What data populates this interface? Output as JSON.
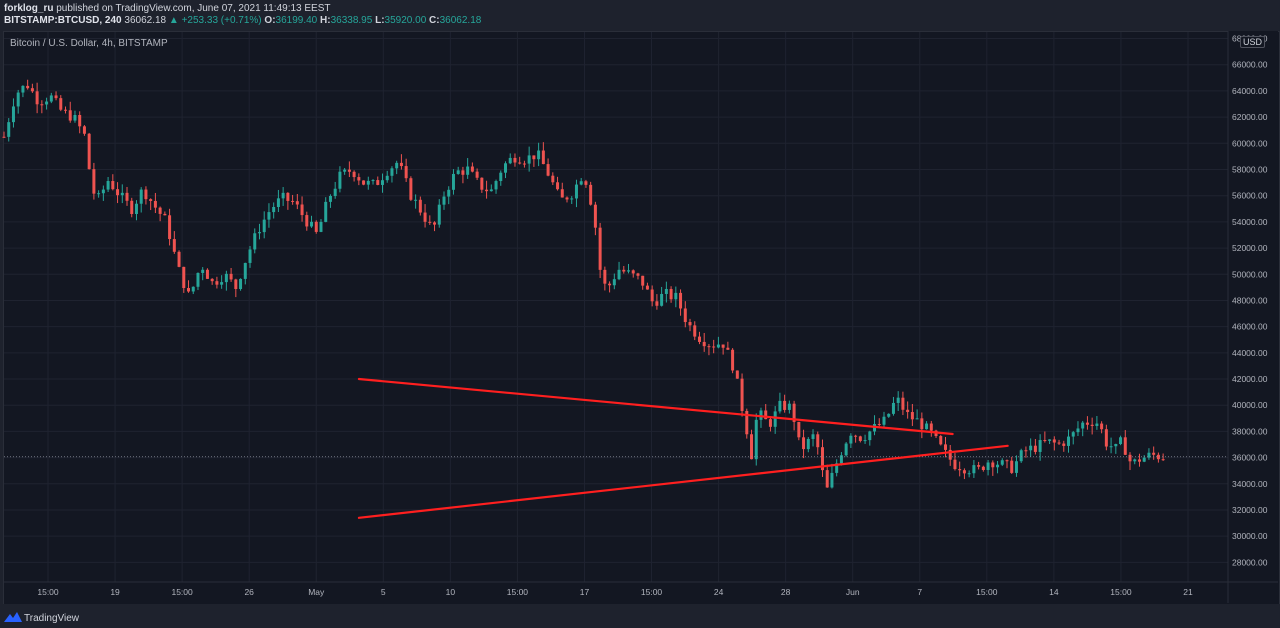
{
  "header": {
    "publisher": "forklog_ru",
    "published_text": "published on TradingView.com, June 07, 2021 11:49:13 EEST",
    "symbol": "BITSTAMP:BTCUSD, 240",
    "last": "36062.18",
    "change": "+253.33 (+0.71%)",
    "o_label": "O:",
    "o_value": "36199.40",
    "h_label": "H:",
    "h_value": "36338.95",
    "l_label": "L:",
    "l_value": "35920.00",
    "c_label": "C:",
    "c_value": "36062.18"
  },
  "chart_title": "Bitcoin / U.S. Dollar, 4h, BITSTAMP",
  "currency_badge": "USD",
  "footer": {
    "brand": "TradingView"
  },
  "colors": {
    "up": "#26a69a",
    "down": "#ef5350",
    "trendline": "#ff1f1f",
    "background": "#131722",
    "grid": "#1f2330"
  },
  "chart_data": {
    "type": "candlestick",
    "symbol": "BITSTAMP:BTCUSD",
    "interval": "4h",
    "ylim": [
      26500,
      68500
    ],
    "y_ticks": [
      "28000.00",
      "30000.00",
      "32000.00",
      "34000.00",
      "36000.00",
      "38000.00",
      "40000.00",
      "42000.00",
      "44000.00",
      "46000.00",
      "48000.00",
      "50000.00",
      "52000.00",
      "54000.00",
      "56000.00",
      "58000.00",
      "60000.00",
      "62000.00",
      "64000.00",
      "66000.00",
      "68000.00"
    ],
    "x_ticks": [
      "15:00",
      "19",
      "15:00",
      "26",
      "May",
      "5",
      "10",
      "15:00",
      "17",
      "15:00",
      "24",
      "28",
      "Jun",
      "7",
      "15:00",
      "14",
      "15:00",
      "21"
    ],
    "last_price": 36062.18,
    "trendlines": [
      {
        "name": "resistance",
        "from": [
          0.29,
          42000
        ],
        "to": [
          0.775,
          37800
        ]
      },
      {
        "name": "support",
        "from": [
          0.29,
          31400
        ],
        "to": [
          0.82,
          36900
        ]
      }
    ],
    "price_path": [
      [
        0.0,
        60500
      ],
      [
        0.01,
        63800
      ],
      [
        0.02,
        64500
      ],
      [
        0.03,
        63200
      ],
      [
        0.04,
        63600
      ],
      [
        0.05,
        62400
      ],
      [
        0.06,
        62000
      ],
      [
        0.07,
        60500
      ],
      [
        0.075,
        57000
      ],
      [
        0.08,
        55500
      ],
      [
        0.09,
        57200
      ],
      [
        0.1,
        56000
      ],
      [
        0.11,
        55000
      ],
      [
        0.12,
        56500
      ],
      [
        0.13,
        55200
      ],
      [
        0.14,
        54000
      ],
      [
        0.15,
        50500
      ],
      [
        0.16,
        48200
      ],
      [
        0.17,
        50800
      ],
      [
        0.18,
        49300
      ],
      [
        0.19,
        50000
      ],
      [
        0.2,
        49000
      ],
      [
        0.21,
        51500
      ],
      [
        0.22,
        53500
      ],
      [
        0.23,
        55000
      ],
      [
        0.24,
        55800
      ],
      [
        0.25,
        55500
      ],
      [
        0.26,
        54200
      ],
      [
        0.27,
        53000
      ],
      [
        0.28,
        55800
      ],
      [
        0.29,
        57500
      ],
      [
        0.3,
        58000
      ],
      [
        0.31,
        57000
      ],
      [
        0.32,
        56800
      ],
      [
        0.33,
        57900
      ],
      [
        0.34,
        58600
      ],
      [
        0.35,
        56200
      ],
      [
        0.36,
        54800
      ],
      [
        0.37,
        53300
      ],
      [
        0.38,
        56200
      ],
      [
        0.39,
        57800
      ],
      [
        0.4,
        58000
      ],
      [
        0.41,
        56800
      ],
      [
        0.42,
        56300
      ],
      [
        0.43,
        58200
      ],
      [
        0.44,
        59000
      ],
      [
        0.45,
        58800
      ],
      [
        0.46,
        59200
      ],
      [
        0.47,
        57600
      ],
      [
        0.48,
        55600
      ],
      [
        0.49,
        56200
      ],
      [
        0.5,
        57800
      ],
      [
        0.505,
        56200
      ],
      [
        0.51,
        53800
      ],
      [
        0.515,
        49800
      ],
      [
        0.52,
        48800
      ],
      [
        0.53,
        50400
      ],
      [
        0.54,
        50000
      ],
      [
        0.55,
        49500
      ],
      [
        0.56,
        47800
      ],
      [
        0.57,
        48500
      ],
      [
        0.58,
        48200
      ],
      [
        0.59,
        46200
      ],
      [
        0.6,
        45200
      ],
      [
        0.61,
        44600
      ],
      [
        0.62,
        44800
      ],
      [
        0.63,
        42800
      ],
      [
        0.635,
        40500
      ],
      [
        0.64,
        38500
      ],
      [
        0.645,
        36200
      ],
      [
        0.65,
        39500
      ],
      [
        0.66,
        38500
      ],
      [
        0.67,
        40000
      ],
      [
        0.68,
        39800
      ],
      [
        0.685,
        37200
      ],
      [
        0.69,
        36800
      ],
      [
        0.7,
        37800
      ],
      [
        0.705,
        35200
      ],
      [
        0.71,
        33500
      ],
      [
        0.72,
        36000
      ],
      [
        0.73,
        38000
      ],
      [
        0.74,
        37500
      ],
      [
        0.75,
        38200
      ],
      [
        0.76,
        38800
      ],
      [
        0.77,
        40500
      ],
      [
        0.78,
        39200
      ],
      [
        0.79,
        38700
      ],
      [
        0.8,
        37800
      ],
      [
        0.81,
        36500
      ],
      [
        0.82,
        35500
      ],
      [
        0.83,
        35200
      ],
      [
        0.84,
        35000
      ],
      [
        0.85,
        35800
      ],
      [
        0.86,
        35500
      ],
      [
        0.87,
        35200
      ],
      [
        0.88,
        36500
      ],
      [
        0.89,
        36800
      ],
      [
        0.9,
        37200
      ],
      [
        0.91,
        37000
      ],
      [
        0.92,
        37500
      ],
      [
        0.93,
        38600
      ],
      [
        0.94,
        38800
      ],
      [
        0.945,
        38600
      ],
      [
        0.95,
        37200
      ],
      [
        0.96,
        36600
      ],
      [
        0.965,
        37400
      ],
      [
        0.97,
        35800
      ],
      [
        0.975,
        35600
      ],
      [
        0.98,
        35900
      ],
      [
        0.99,
        36200
      ],
      [
        1.0,
        36062
      ]
    ]
  }
}
